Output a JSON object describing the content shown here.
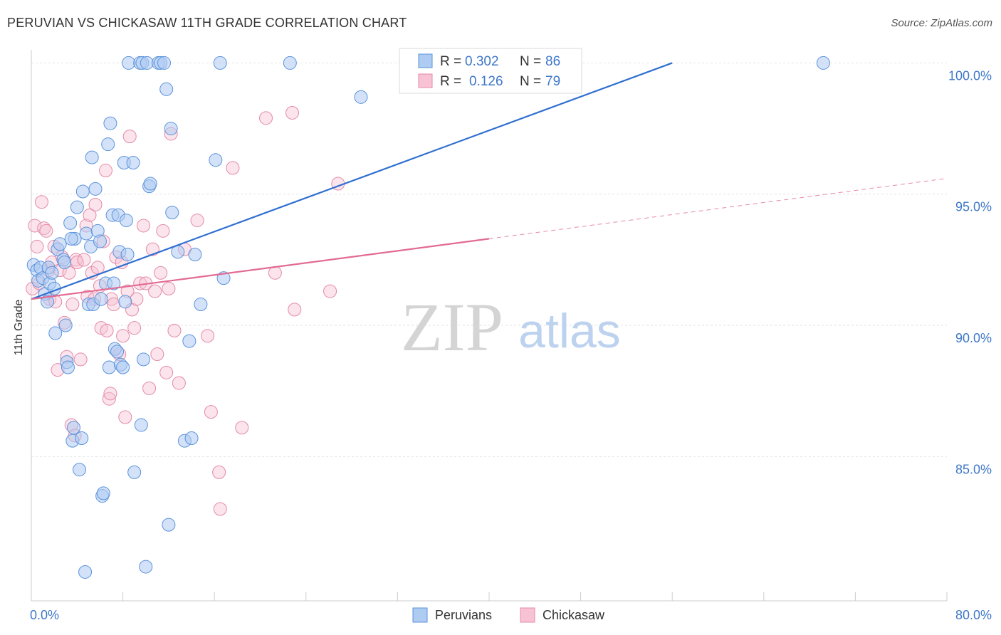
{
  "title": "PERUVIAN VS CHICKASAW 11TH GRADE CORRELATION CHART",
  "source": "Source: ZipAtlas.com",
  "watermark": {
    "part1": "ZIP",
    "part2": "atlas"
  },
  "colors": {
    "peruvian_fill": "#aecbf2",
    "peruvian_stroke": "#5b93db",
    "peruvian_line": "#2f6fd0",
    "chickasaw_fill": "#f7c3d4",
    "chickasaw_stroke": "#e48aa7",
    "chickasaw_line": "#e26a93",
    "tick_text": "#3f78c9",
    "grid": "#e3e3e3"
  },
  "legend": {
    "rows": [
      {
        "r_label": "R = ",
        "r_value": "0.302",
        "n_label": "N = ",
        "n_value": "86"
      },
      {
        "r_label": "R = ",
        "r_value": "0.126",
        "n_label": "N = ",
        "n_value": "79"
      }
    ]
  },
  "bottom_legend": [
    "Peruvians",
    "Chickasaw"
  ],
  "chart_data": {
    "type": "scatter",
    "title": "PERUVIAN VS CHICKASAW 11TH GRADE CORRELATION CHART",
    "xlabel": "",
    "ylabel": "11th Grade",
    "xlim": [
      0,
      80
    ],
    "ylim": [
      79.5,
      100.5
    ],
    "x_tick_labels": [
      {
        "value": 0,
        "label": "0.0%"
      },
      {
        "value": 80,
        "label": "80.0%"
      }
    ],
    "y_tick_labels": [
      {
        "value": 100,
        "label": "100.0%"
      },
      {
        "value": 95,
        "label": "95.0%"
      },
      {
        "value": 90,
        "label": "90.0%"
      },
      {
        "value": 85,
        "label": "85.0%"
      }
    ],
    "grid": true,
    "legend_position": "top-center",
    "series": [
      {
        "name": "Peruvians",
        "r": 0.302,
        "n": 86,
        "trend": {
          "x": [
            0,
            56
          ],
          "y": [
            91.0,
            100.0
          ]
        },
        "points": [
          [
            0.2,
            92.3
          ],
          [
            0.5,
            92.1
          ],
          [
            0.6,
            91.7
          ],
          [
            0.8,
            92.2
          ],
          [
            1.0,
            91.8
          ],
          [
            1.2,
            91.2
          ],
          [
            1.4,
            90.9
          ],
          [
            1.5,
            92.2
          ],
          [
            1.6,
            91.6
          ],
          [
            1.8,
            92.0
          ],
          [
            2.0,
            91.4
          ],
          [
            2.1,
            89.7
          ],
          [
            2.3,
            92.9
          ],
          [
            2.5,
            93.1
          ],
          [
            2.8,
            92.5
          ],
          [
            2.9,
            92.4
          ],
          [
            3.0,
            90.0
          ],
          [
            3.1,
            88.6
          ],
          [
            3.2,
            88.4
          ],
          [
            3.4,
            93.9
          ],
          [
            3.6,
            85.6
          ],
          [
            3.7,
            86.1
          ],
          [
            3.8,
            93.3
          ],
          [
            4.0,
            94.5
          ],
          [
            4.2,
            84.5
          ],
          [
            4.5,
            95.1
          ],
          [
            4.7,
            80.6
          ],
          [
            4.8,
            93.5
          ],
          [
            5.0,
            90.8
          ],
          [
            5.2,
            93.0
          ],
          [
            5.3,
            96.4
          ],
          [
            5.4,
            90.8
          ],
          [
            5.6,
            95.2
          ],
          [
            5.8,
            93.6
          ],
          [
            6.0,
            93.2
          ],
          [
            6.2,
            83.5
          ],
          [
            6.3,
            83.6
          ],
          [
            6.5,
            91.6
          ],
          [
            6.7,
            96.9
          ],
          [
            6.8,
            88.4
          ],
          [
            6.9,
            97.7
          ],
          [
            7.1,
            94.2
          ],
          [
            7.2,
            91.6
          ],
          [
            7.3,
            89.1
          ],
          [
            7.6,
            94.2
          ],
          [
            7.7,
            92.8
          ],
          [
            7.8,
            88.5
          ],
          [
            8.0,
            88.4
          ],
          [
            8.1,
            96.2
          ],
          [
            8.2,
            90.9
          ],
          [
            8.3,
            94.0
          ],
          [
            8.4,
            92.7
          ],
          [
            8.5,
            100.0
          ],
          [
            8.9,
            96.2
          ],
          [
            9.5,
            100.0
          ],
          [
            9.6,
            86.2
          ],
          [
            9.7,
            100.0
          ],
          [
            9.8,
            88.7
          ],
          [
            10.0,
            80.8
          ],
          [
            10.1,
            100.0
          ],
          [
            10.3,
            95.3
          ],
          [
            10.4,
            95.4
          ],
          [
            11.1,
            100.0
          ],
          [
            11.3,
            100.0
          ],
          [
            11.6,
            100.0
          ],
          [
            11.8,
            99.0
          ],
          [
            12.0,
            82.4
          ],
          [
            12.2,
            97.5
          ],
          [
            12.3,
            94.3
          ],
          [
            13.4,
            85.6
          ],
          [
            13.8,
            89.4
          ],
          [
            14.0,
            85.7
          ],
          [
            14.3,
            92.7
          ],
          [
            14.8,
            90.8
          ],
          [
            16.1,
            96.3
          ],
          [
            16.5,
            100.0
          ],
          [
            16.8,
            91.8
          ],
          [
            22.6,
            100.0
          ],
          [
            28.8,
            98.7
          ],
          [
            69.2,
            100.0
          ],
          [
            7.5,
            89.0
          ],
          [
            9.0,
            84.4
          ],
          [
            12.8,
            92.8
          ],
          [
            4.4,
            85.7
          ],
          [
            3.5,
            93.3
          ],
          [
            6.1,
            91.0
          ]
        ]
      },
      {
        "name": "Chickasaw",
        "r": 0.126,
        "n": 79,
        "trend_solid": {
          "x": [
            0,
            40
          ],
          "y": [
            91.0,
            93.3
          ]
        },
        "trend_dashed": {
          "x": [
            40,
            80
          ],
          "y": [
            93.3,
            95.6
          ]
        },
        "points": [
          [
            0.1,
            91.4
          ],
          [
            0.3,
            93.8
          ],
          [
            0.5,
            93.0
          ],
          [
            0.7,
            91.6
          ],
          [
            0.9,
            94.7
          ],
          [
            1.1,
            93.7
          ],
          [
            1.3,
            93.6
          ],
          [
            1.5,
            92.1
          ],
          [
            1.6,
            91.0
          ],
          [
            1.8,
            92.4
          ],
          [
            2.0,
            93.0
          ],
          [
            2.1,
            90.9
          ],
          [
            2.3,
            88.3
          ],
          [
            2.5,
            92.1
          ],
          [
            2.7,
            92.6
          ],
          [
            2.9,
            90.1
          ],
          [
            3.1,
            88.8
          ],
          [
            3.3,
            92.0
          ],
          [
            3.5,
            86.2
          ],
          [
            3.6,
            90.8
          ],
          [
            3.8,
            85.8
          ],
          [
            3.9,
            92.5
          ],
          [
            4.0,
            92.4
          ],
          [
            4.3,
            88.7
          ],
          [
            4.6,
            92.5
          ],
          [
            4.8,
            93.8
          ],
          [
            4.9,
            91.1
          ],
          [
            5.1,
            94.2
          ],
          [
            5.3,
            92.0
          ],
          [
            5.5,
            91.0
          ],
          [
            5.6,
            94.6
          ],
          [
            5.8,
            92.2
          ],
          [
            6.0,
            91.5
          ],
          [
            6.1,
            89.9
          ],
          [
            6.3,
            93.2
          ],
          [
            6.5,
            95.9
          ],
          [
            6.6,
            89.8
          ],
          [
            6.8,
            87.2
          ],
          [
            7.0,
            91.0
          ],
          [
            7.2,
            90.8
          ],
          [
            7.4,
            92.6
          ],
          [
            7.7,
            88.9
          ],
          [
            7.9,
            92.4
          ],
          [
            8.0,
            89.6
          ],
          [
            8.2,
            86.5
          ],
          [
            8.4,
            91.3
          ],
          [
            8.6,
            97.2
          ],
          [
            8.8,
            90.6
          ],
          [
            9.0,
            89.9
          ],
          [
            9.2,
            91.0
          ],
          [
            9.5,
            91.6
          ],
          [
            9.8,
            93.8
          ],
          [
            10.0,
            91.6
          ],
          [
            10.3,
            87.6
          ],
          [
            10.6,
            92.9
          ],
          [
            10.8,
            91.3
          ],
          [
            11.0,
            88.9
          ],
          [
            11.3,
            92.0
          ],
          [
            11.5,
            93.6
          ],
          [
            11.8,
            88.2
          ],
          [
            12.0,
            91.4
          ],
          [
            12.5,
            89.8
          ],
          [
            12.9,
            87.8
          ],
          [
            13.4,
            92.9
          ],
          [
            14.5,
            94.0
          ],
          [
            15.4,
            89.6
          ],
          [
            15.7,
            86.7
          ],
          [
            16.4,
            84.4
          ],
          [
            16.5,
            83.0
          ],
          [
            17.6,
            96.0
          ],
          [
            18.4,
            86.1
          ],
          [
            20.5,
            97.9
          ],
          [
            21.3,
            92.0
          ],
          [
            22.8,
            98.1
          ],
          [
            23.0,
            90.6
          ],
          [
            26.1,
            91.3
          ],
          [
            26.8,
            95.4
          ],
          [
            12.2,
            97.3
          ],
          [
            6.9,
            87.4
          ]
        ]
      }
    ]
  }
}
